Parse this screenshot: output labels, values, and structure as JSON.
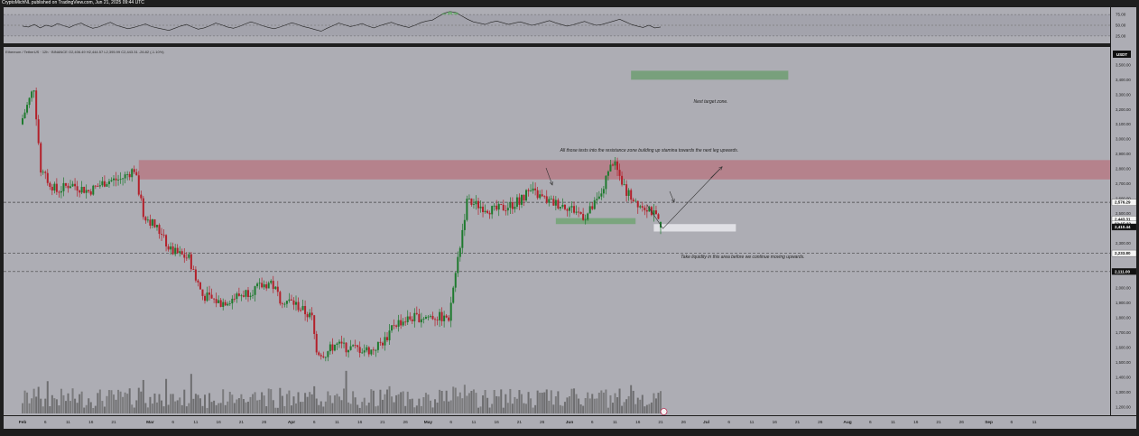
{
  "header": {
    "publisher_line": "CryptoMichNL published on TradingView.com, Jun 21, 2025 09:44 UTC"
  },
  "symbol": {
    "info": "Ethereum / TetherUS · 12h · BINANCE  O2,406.49  H2,444.57  L2,395.99  C2,443.31  -26.82 (-1.10%)"
  },
  "rsi_panel": {
    "ticks": [
      "75.00",
      "50.00",
      "25.00"
    ],
    "levels": [
      75,
      50,
      25
    ]
  },
  "price_axis": {
    "currency": "USDT",
    "ticks": [
      {
        "label": "3,500.00",
        "value": 3500
      },
      {
        "label": "3,400.00",
        "value": 3400
      },
      {
        "label": "3,300.00",
        "value": 3300
      },
      {
        "label": "3,200.00",
        "value": 3200
      },
      {
        "label": "3,100.00",
        "value": 3100
      },
      {
        "label": "3,000.00",
        "value": 3000
      },
      {
        "label": "2,900.00",
        "value": 2900
      },
      {
        "label": "2,800.00",
        "value": 2800
      },
      {
        "label": "2,700.00",
        "value": 2700
      },
      {
        "label": "2,600.00",
        "value": 2600
      },
      {
        "label": "2,500.00",
        "value": 2500
      },
      {
        "label": "2,400.00",
        "value": 2400
      },
      {
        "label": "2,300.00",
        "value": 2300
      },
      {
        "label": "2,100.00",
        "value": 2100
      },
      {
        "label": "2,000.00",
        "value": 2000
      },
      {
        "label": "1,900.00",
        "value": 1900
      },
      {
        "label": "1,800.00",
        "value": 1800
      },
      {
        "label": "1,700.00",
        "value": 1700
      },
      {
        "label": "1,600.00",
        "value": 1600
      },
      {
        "label": "1,500.00",
        "value": 1500
      },
      {
        "label": "1,400.00",
        "value": 1400
      },
      {
        "label": "1,300.00",
        "value": 1300
      },
      {
        "label": "1,200.00",
        "value": 1200
      }
    ],
    "markers": [
      {
        "label": "2,576.29",
        "value": 2576.29,
        "style": "white"
      },
      {
        "label": "2,443.31",
        "value": 2462,
        "style": "white"
      },
      {
        "label": "02:15:32",
        "value": 2432,
        "style": "white"
      },
      {
        "label": "2,410.44",
        "value": 2410.44,
        "style": "black"
      },
      {
        "label": "2,233.80",
        "value": 2233.8,
        "style": "white"
      },
      {
        "label": "2,111.00",
        "value": 2111,
        "style": "black"
      }
    ]
  },
  "time_axis": {
    "ticks": [
      {
        "label": "Feb",
        "day": 0,
        "bold": true
      },
      {
        "label": "6",
        "day": 5
      },
      {
        "label": "11",
        "day": 10
      },
      {
        "label": "16",
        "day": 15
      },
      {
        "label": "21",
        "day": 20
      },
      {
        "label": "Mar",
        "day": 28,
        "bold": true
      },
      {
        "label": "6",
        "day": 33
      },
      {
        "label": "11",
        "day": 38
      },
      {
        "label": "16",
        "day": 43
      },
      {
        "label": "21",
        "day": 48
      },
      {
        "label": "26",
        "day": 53
      },
      {
        "label": "Apr",
        "day": 59,
        "bold": true
      },
      {
        "label": "6",
        "day": 64
      },
      {
        "label": "11",
        "day": 69
      },
      {
        "label": "16",
        "day": 74
      },
      {
        "label": "21",
        "day": 79
      },
      {
        "label": "26",
        "day": 84
      },
      {
        "label": "May",
        "day": 89,
        "bold": true
      },
      {
        "label": "6",
        "day": 94
      },
      {
        "label": "11",
        "day": 99
      },
      {
        "label": "16",
        "day": 104
      },
      {
        "label": "21",
        "day": 109
      },
      {
        "label": "26",
        "day": 114
      },
      {
        "label": "Jun",
        "day": 120,
        "bold": true
      },
      {
        "label": "6",
        "day": 125
      },
      {
        "label": "11",
        "day": 130
      },
      {
        "label": "16",
        "day": 135
      },
      {
        "label": "21",
        "day": 140
      },
      {
        "label": "26",
        "day": 145
      },
      {
        "label": "Jul",
        "day": 150,
        "bold": true
      },
      {
        "label": "6",
        "day": 155
      },
      {
        "label": "11",
        "day": 160
      },
      {
        "label": "16",
        "day": 165
      },
      {
        "label": "21",
        "day": 170
      },
      {
        "label": "26",
        "day": 175
      },
      {
        "label": "Aug",
        "day": 181,
        "bold": true
      },
      {
        "label": "6",
        "day": 186
      },
      {
        "label": "11",
        "day": 191
      },
      {
        "label": "16",
        "day": 196
      },
      {
        "label": "21",
        "day": 201
      },
      {
        "label": "26",
        "day": 206
      },
      {
        "label": "Sep",
        "day": 212,
        "bold": true
      },
      {
        "label": "6",
        "day": 217
      },
      {
        "label": "11",
        "day": 222
      }
    ]
  },
  "annotations": {
    "next_target": "Next target zone.",
    "tests": "All those tests into the resistance zone building up stamina towards the next leg upwards.",
    "liquidity": "Take liquidity in this area before we continue moving upwards."
  },
  "chart_data": {
    "type": "candlestick",
    "instrument": "Ethereum / TetherUS",
    "exchange": "BINANCE",
    "timeframe": "12h",
    "last": {
      "open": 2406.49,
      "high": 2444.57,
      "low": 2395.99,
      "close": 2443.31,
      "change": -26.82,
      "change_pct": -1.1
    },
    "ylim": [
      1170,
      3620
    ],
    "resistance_zone": [
      2730,
      2860
    ],
    "target_zone": [
      3400,
      3460
    ],
    "support_zone": [
      2430,
      2470
    ],
    "liquidity_zone": [
      2380,
      2430
    ],
    "levels": [
      2576.29,
      2233.8,
      2111
    ],
    "path": [
      {
        "day": 0,
        "price": 3100
      },
      {
        "day": 3,
        "price": 3350
      },
      {
        "day": 4.5,
        "price": 2780
      },
      {
        "day": 8,
        "price": 2650
      },
      {
        "day": 11,
        "price": 2700
      },
      {
        "day": 15,
        "price": 2650
      },
      {
        "day": 19,
        "price": 2720
      },
      {
        "day": 22,
        "price": 2730
      },
      {
        "day": 25,
        "price": 2800
      },
      {
        "day": 27,
        "price": 2500
      },
      {
        "day": 30,
        "price": 2400
      },
      {
        "day": 33,
        "price": 2250
      },
      {
        "day": 37,
        "price": 2200
      },
      {
        "day": 40,
        "price": 1950
      },
      {
        "day": 44,
        "price": 1900
      },
      {
        "day": 48,
        "price": 1950
      },
      {
        "day": 52,
        "price": 2000
      },
      {
        "day": 55,
        "price": 2040
      },
      {
        "day": 57,
        "price": 1930
      },
      {
        "day": 60,
        "price": 1900
      },
      {
        "day": 62,
        "price": 1850
      },
      {
        "day": 64,
        "price": 1800
      },
      {
        "day": 65,
        "price": 1570
      },
      {
        "day": 67,
        "price": 1560
      },
      {
        "day": 69,
        "price": 1620
      },
      {
        "day": 72,
        "price": 1600
      },
      {
        "day": 77,
        "price": 1580
      },
      {
        "day": 80,
        "price": 1650
      },
      {
        "day": 82,
        "price": 1760
      },
      {
        "day": 86,
        "price": 1800
      },
      {
        "day": 90,
        "price": 1810
      },
      {
        "day": 94,
        "price": 1800
      },
      {
        "day": 96,
        "price": 2200
      },
      {
        "day": 98,
        "price": 2580
      },
      {
        "day": 101,
        "price": 2550
      },
      {
        "day": 104,
        "price": 2520
      },
      {
        "day": 108,
        "price": 2560
      },
      {
        "day": 112,
        "price": 2650
      },
      {
        "day": 116,
        "price": 2580
      },
      {
        "day": 120,
        "price": 2550
      },
      {
        "day": 124,
        "price": 2480
      },
      {
        "day": 127,
        "price": 2600
      },
      {
        "day": 130,
        "price": 2850
      },
      {
        "day": 133,
        "price": 2650
      },
      {
        "day": 136,
        "price": 2560
      },
      {
        "day": 138,
        "price": 2540
      },
      {
        "day": 140,
        "price": 2443
      }
    ],
    "rsi": [
      48,
      46,
      52,
      44,
      50,
      47,
      54,
      49,
      45,
      51,
      55,
      48,
      43,
      46,
      52,
      57,
      50,
      46,
      42,
      45,
      49,
      53,
      47,
      44,
      41,
      38,
      43,
      48,
      52,
      46,
      41,
      44,
      49,
      55,
      51,
      46,
      43,
      47,
      53,
      58,
      54,
      49,
      45,
      42,
      46,
      51,
      56,
      52,
      47,
      44,
      40,
      36,
      43,
      49,
      55,
      51,
      47,
      50,
      54,
      48,
      44,
      49,
      53,
      57,
      52,
      48,
      45,
      50,
      56,
      60,
      62,
      70,
      78,
      82,
      80,
      72,
      64,
      58,
      55,
      52,
      57,
      60,
      56,
      52,
      55,
      58,
      54,
      50,
      53,
      57,
      61,
      56,
      52,
      48,
      51,
      55,
      59,
      54,
      50,
      52,
      56,
      60,
      64,
      58,
      52,
      48,
      45,
      50,
      44,
      46
    ]
  }
}
